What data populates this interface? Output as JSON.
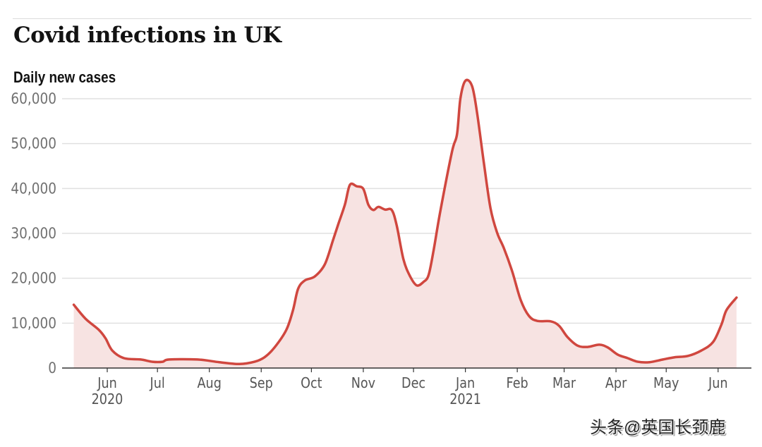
{
  "header": {
    "title": "Covid infections in UK",
    "subtitle": "Daily new cases"
  },
  "watermark": "头条@英国长颈鹿",
  "colors": {
    "line": "#d0473f",
    "fill": "#f7e3e2",
    "grid": "#e0e0e0"
  },
  "chart_data": {
    "type": "area",
    "title": "Covid infections in UK",
    "subtitle": "Daily new cases",
    "ylim": [
      0,
      60000
    ],
    "yticks": [
      {
        "value": 0,
        "label": "0"
      },
      {
        "value": 10000,
        "label": "10,000"
      },
      {
        "value": 20000,
        "label": "20,000"
      },
      {
        "value": 30000,
        "label": "30,000"
      },
      {
        "value": 40000,
        "label": "40,000"
      },
      {
        "value": 50000,
        "label": "50,000"
      },
      {
        "value": 60000,
        "label": "60,000"
      }
    ],
    "xticks": [
      {
        "date": "2020-06-01",
        "label": "Jun",
        "year": "2020"
      },
      {
        "date": "2020-07-01",
        "label": "Jul"
      },
      {
        "date": "2020-08-01",
        "label": "Aug"
      },
      {
        "date": "2020-09-01",
        "label": "Sep"
      },
      {
        "date": "2020-10-01",
        "label": "Oct"
      },
      {
        "date": "2020-11-01",
        "label": "Nov"
      },
      {
        "date": "2020-12-01",
        "label": "Dec"
      },
      {
        "date": "2021-01-01",
        "label": "Jan",
        "year": "2021"
      },
      {
        "date": "2021-02-01",
        "label": "Feb"
      },
      {
        "date": "2021-03-01",
        "label": "Mar"
      },
      {
        "date": "2021-04-01",
        "label": "Apr"
      },
      {
        "date": "2021-05-01",
        "label": "May"
      },
      {
        "date": "2021-06-01",
        "label": "Jun"
      }
    ],
    "grid": true,
    "series": [
      {
        "points": [
          [
            "2020-05-12",
            14100
          ],
          [
            "2020-05-19",
            11000
          ],
          [
            "2020-05-27",
            8500
          ],
          [
            "2020-05-31",
            6600
          ],
          [
            "2020-06-04",
            3900
          ],
          [
            "2020-06-11",
            2200
          ],
          [
            "2020-06-21",
            1900
          ],
          [
            "2020-06-28",
            1400
          ],
          [
            "2020-07-04",
            1400
          ],
          [
            "2020-07-08",
            1900
          ],
          [
            "2020-07-25",
            1900
          ],
          [
            "2020-08-07",
            1300
          ],
          [
            "2020-08-19",
            900
          ],
          [
            "2020-08-28",
            1400
          ],
          [
            "2020-09-03",
            2400
          ],
          [
            "2020-09-09",
            4600
          ],
          [
            "2020-09-16",
            8500
          ],
          [
            "2020-09-20",
            12900
          ],
          [
            "2020-09-23",
            17600
          ],
          [
            "2020-09-27",
            19500
          ],
          [
            "2020-10-03",
            20400
          ],
          [
            "2020-10-09",
            23100
          ],
          [
            "2020-10-14",
            28600
          ],
          [
            "2020-10-17",
            32000
          ],
          [
            "2020-10-21",
            36400
          ],
          [
            "2020-10-24",
            40800
          ],
          [
            "2020-10-28",
            40500
          ],
          [
            "2020-11-01",
            39900
          ],
          [
            "2020-11-04",
            36400
          ],
          [
            "2020-11-07",
            35200
          ],
          [
            "2020-11-10",
            35900
          ],
          [
            "2020-11-14",
            35300
          ],
          [
            "2020-11-18",
            35200
          ],
          [
            "2020-11-21",
            31700
          ],
          [
            "2020-11-25",
            24200
          ],
          [
            "2020-11-29",
            20400
          ],
          [
            "2020-12-03",
            18400
          ],
          [
            "2020-12-07",
            19200
          ],
          [
            "2020-12-10",
            20700
          ],
          [
            "2020-12-13",
            26200
          ],
          [
            "2020-12-17",
            34900
          ],
          [
            "2020-12-24",
            48200
          ],
          [
            "2020-12-27",
            52100
          ],
          [
            "2020-12-29",
            60000
          ],
          [
            "2021-01-01",
            64000
          ],
          [
            "2021-01-05",
            62800
          ],
          [
            "2021-01-08",
            56800
          ],
          [
            "2021-01-12",
            45800
          ],
          [
            "2021-01-16",
            35600
          ],
          [
            "2021-01-20",
            30100
          ],
          [
            "2021-01-24",
            26700
          ],
          [
            "2021-01-29",
            21500
          ],
          [
            "2021-02-03",
            15200
          ],
          [
            "2021-02-08",
            11600
          ],
          [
            "2021-02-13",
            10500
          ],
          [
            "2021-02-21",
            10400
          ],
          [
            "2021-02-26",
            9400
          ],
          [
            "2021-03-03",
            6900
          ],
          [
            "2021-03-09",
            5000
          ],
          [
            "2021-03-15",
            4700
          ],
          [
            "2021-03-22",
            5200
          ],
          [
            "2021-03-27",
            4600
          ],
          [
            "2021-04-02",
            3000
          ],
          [
            "2021-04-08",
            2200
          ],
          [
            "2021-04-14",
            1400
          ],
          [
            "2021-04-21",
            1300
          ],
          [
            "2021-04-29",
            1900
          ],
          [
            "2021-05-06",
            2400
          ],
          [
            "2021-05-14",
            2700
          ],
          [
            "2021-05-22",
            3900
          ],
          [
            "2021-05-29",
            5800
          ],
          [
            "2021-06-03",
            9700
          ],
          [
            "2021-06-06",
            12900
          ],
          [
            "2021-06-12",
            15700
          ]
        ]
      }
    ]
  }
}
